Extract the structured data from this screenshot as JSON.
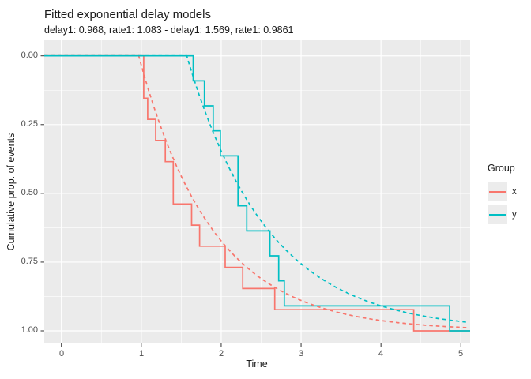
{
  "header": {
    "title": "Fitted exponential delay models",
    "subtitle": "delay1: 0.968, rate1: 1.083 - delay1: 1.569, rate1: 0.9861"
  },
  "chart_data": {
    "type": "line",
    "title": "Fitted exponential delay models",
    "subtitle": "delay1: 0.968, rate1: 1.083 - delay1: 1.569, rate1: 0.9861",
    "xlabel": "Time",
    "ylabel": "Cumulative prop. of events",
    "y_axis_reversed": true,
    "xlim": [
      -0.2147,
      5.116
    ],
    "ylim": [
      -0.0566,
      1.0459
    ],
    "x_tick_values": [
      0,
      1,
      2,
      3,
      4,
      5
    ],
    "x_ticks": [
      "0",
      "1",
      "2",
      "3",
      "4",
      "5"
    ],
    "x_minor": [
      0.5,
      1.5,
      2.5,
      3.5,
      4.5
    ],
    "y_tick_values": [
      0,
      0.25,
      0.5,
      0.75,
      1.0
    ],
    "y_ticks": [
      "0.00",
      "0.25",
      "0.50",
      "0.75",
      "1.00"
    ],
    "y_minor": [
      0.125,
      0.375,
      0.625,
      0.875
    ],
    "grid": true,
    "panel_color": "#EBEBEB",
    "grid_color": "#FFFFFF",
    "legend": {
      "title": "Group",
      "position": "right",
      "entries": [
        {
          "label": "x",
          "color": "#F8766D"
        },
        {
          "label": "y",
          "color": "#00BFC4"
        }
      ]
    },
    "series": [
      {
        "name": "x",
        "kind": "step-ecdf",
        "color": "#F8766D",
        "events": [
          [
            1.03,
            0.1538
          ],
          [
            1.08,
            0.2308
          ],
          [
            1.18,
            0.3077
          ],
          [
            1.3,
            0.3846
          ],
          [
            1.4,
            0.5385
          ],
          [
            1.63,
            0.6154
          ],
          [
            1.73,
            0.6923
          ],
          [
            2.05,
            0.7692
          ],
          [
            2.27,
            0.8462
          ],
          [
            2.67,
            0.9231
          ],
          [
            4.41,
            1.0
          ]
        ]
      },
      {
        "name": "y",
        "kind": "step-ecdf",
        "color": "#00BFC4",
        "events": [
          [
            1.65,
            0.0909
          ],
          [
            1.79,
            0.1818
          ],
          [
            1.9,
            0.2727
          ],
          [
            1.99,
            0.3636
          ],
          [
            2.21,
            0.5455
          ],
          [
            2.32,
            0.6364
          ],
          [
            2.61,
            0.7273
          ],
          [
            2.72,
            0.8182
          ],
          [
            2.79,
            0.9091
          ],
          [
            4.86,
            1.0
          ]
        ]
      }
    ],
    "models": [
      {
        "name": "x",
        "kind": "fitted-exponential-delay",
        "color": "#F8766D",
        "delay1": 0.968,
        "rate1": 1.083
      },
      {
        "name": "y",
        "kind": "fitted-exponential-delay",
        "color": "#00BFC4",
        "delay1": 1.569,
        "rate1": 0.9861
      }
    ]
  }
}
